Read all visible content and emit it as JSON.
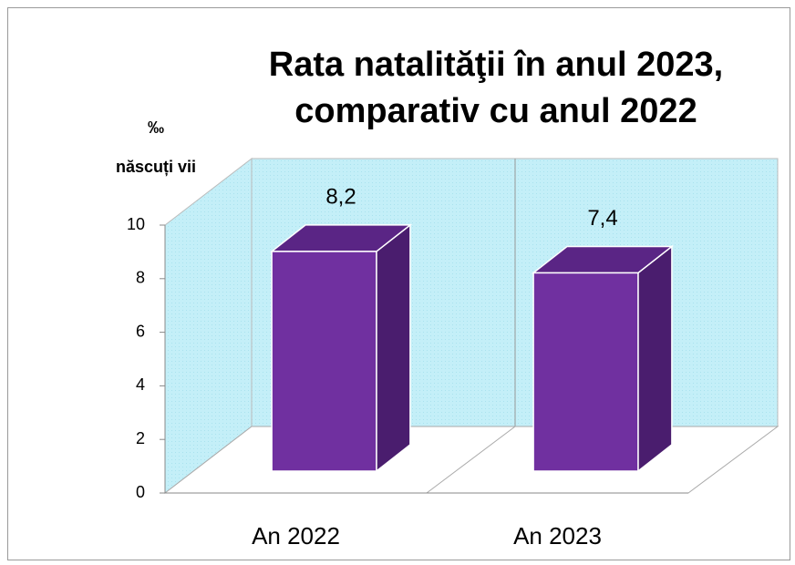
{
  "chart_data": {
    "type": "bar",
    "title": [
      "Rata natalităţii în anul 2023,",
      "comparativ cu anul 2022"
    ],
    "y_label": [
      "‰",
      "născuți vii"
    ],
    "categories": [
      "An 2022",
      "An 2023"
    ],
    "values": [
      8.2,
      7.4
    ],
    "value_labels": [
      "8,2",
      "7,4"
    ],
    "color": "#7030a0",
    "ylim": [
      0,
      10
    ],
    "yticks": [
      0,
      2,
      4,
      6,
      8,
      10
    ],
    "grid": false
  }
}
